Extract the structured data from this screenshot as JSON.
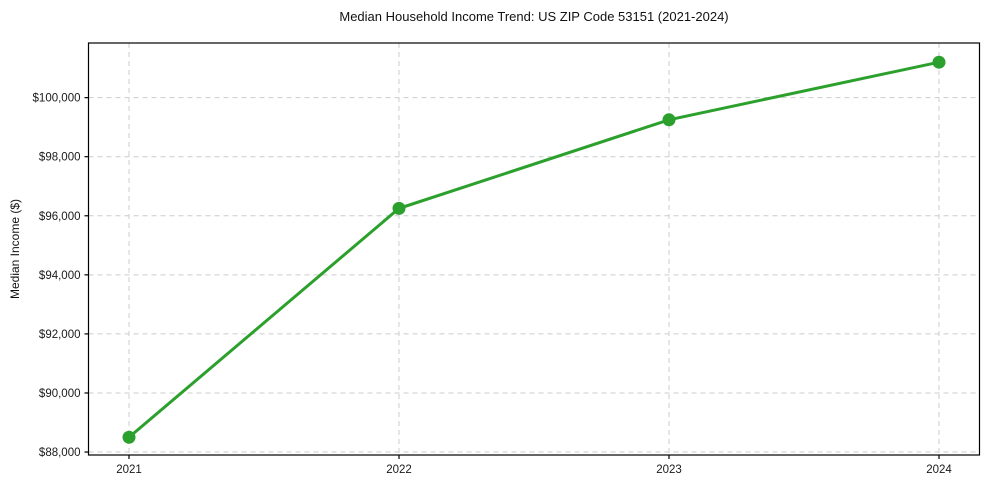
{
  "chart_data": {
    "type": "line",
    "title": "Median Household Income Trend: US ZIP Code 53151 (2021-2024)",
    "xlabel": "",
    "ylabel": "Median Income ($)",
    "x": [
      2021,
      2022,
      2023,
      2024
    ],
    "series": [
      {
        "name": "Median Household Income",
        "values": [
          88500,
          96250,
          99250,
          101200
        ]
      }
    ],
    "xticks": [
      {
        "value": 2021,
        "label": "2021"
      },
      {
        "value": 2022,
        "label": "2022"
      },
      {
        "value": 2023,
        "label": "2023"
      },
      {
        "value": 2024,
        "label": "2024"
      }
    ],
    "yticks": [
      {
        "value": 88000,
        "label": "$88,000"
      },
      {
        "value": 90000,
        "label": "$90,000"
      },
      {
        "value": 92000,
        "label": "$92,000"
      },
      {
        "value": 94000,
        "label": "$94,000"
      },
      {
        "value": 96000,
        "label": "$96,000"
      },
      {
        "value": 98000,
        "label": "$98,000"
      },
      {
        "value": 100000,
        "label": "$100,000"
      }
    ],
    "xlim": [
      2020.85,
      2024.15
    ],
    "ylim": [
      87900,
      101850
    ],
    "grid": true,
    "grid_style": "dashed",
    "legend": "none",
    "line_color": "#2ca02c",
    "marker": "circle",
    "line_width": 3,
    "marker_radius": 6.5
  }
}
